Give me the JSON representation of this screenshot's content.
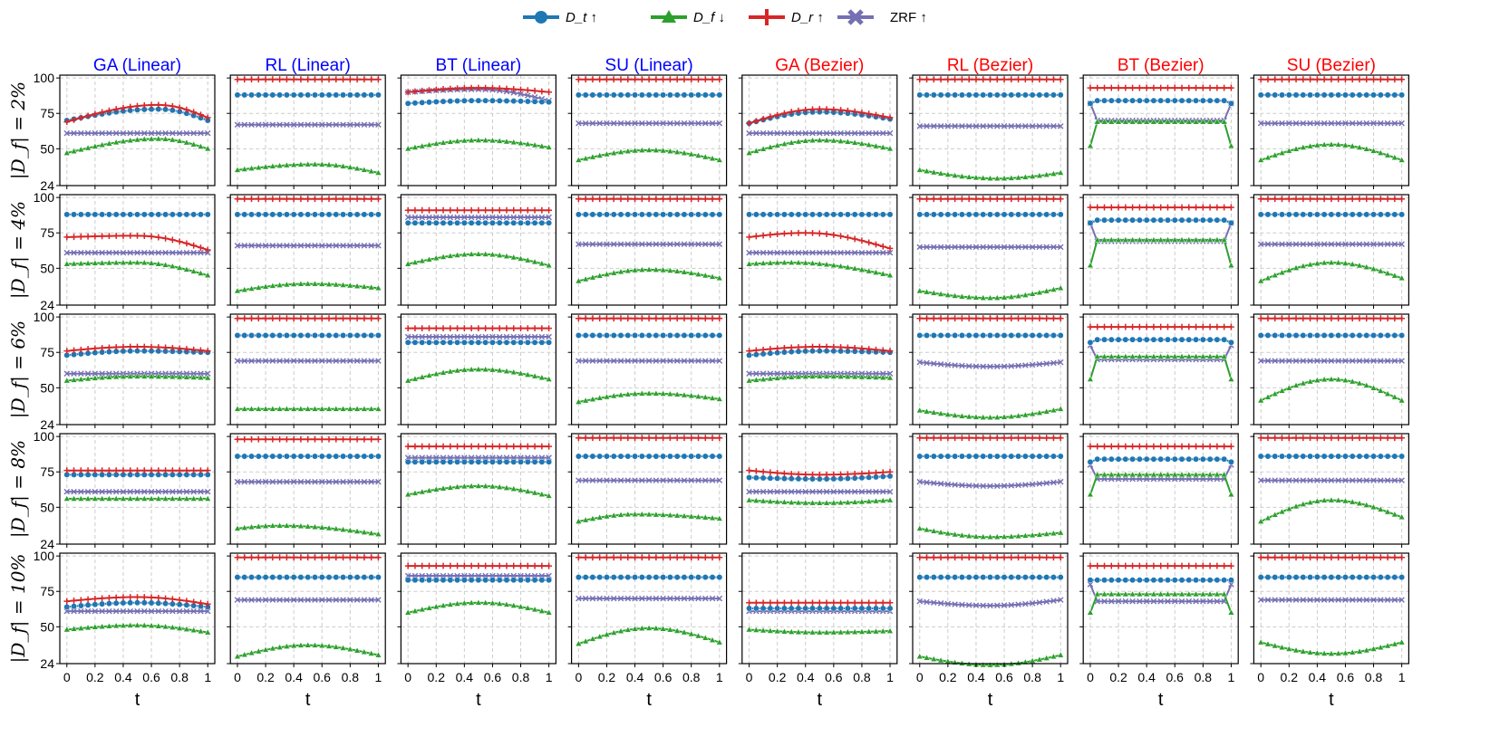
{
  "chart_data": {
    "type": "line",
    "columns": [
      "GA (Linear)",
      "RL (Linear)",
      "BT (Linear)",
      "SU (Linear)",
      "GA (Bezier)",
      "RL (Bezier)",
      "BT (Bezier)",
      "SU (Bezier)"
    ],
    "column_colors": [
      "#0000ff",
      "#0000ff",
      "#0000ff",
      "#0000ff",
      "#ff0000",
      "#ff0000",
      "#ff0000",
      "#ff0000"
    ],
    "rows": [
      "|D_f| = 2%",
      "|D_f| = 4%",
      "|D_f| = 6%",
      "|D_f| = 8%",
      "|D_f| = 10%"
    ],
    "xlabel": "t",
    "x_ticks": [
      "0",
      "0.2",
      "0.4",
      "0.6",
      "0.8",
      "1"
    ],
    "y_ticks": [
      "24",
      "50",
      "75",
      "100"
    ],
    "ylim": [
      24,
      102
    ],
    "xlim": [
      -0.05,
      1.05
    ],
    "grid": true,
    "legend_position": "top-center",
    "legend": [
      {
        "key": "Dt",
        "label": "D_t ↑",
        "color": "#1f77b4",
        "marker": "circle"
      },
      {
        "key": "Df",
        "label": "D_f ↓",
        "color": "#2ca02c",
        "marker": "triangle"
      },
      {
        "key": "Dr",
        "label": "D_r ↑",
        "color": "#d62728",
        "marker": "plus"
      },
      {
        "key": "ZRF",
        "label": "ZRF  ↑",
        "color": "#7570b3",
        "marker": "x"
      }
    ],
    "curves": {
      "Dt": [
        [
          [
            "hump",
            70,
            78,
            0.65,
            70
          ],
          [
            "flat",
            88
          ],
          [
            "hump",
            82,
            84,
            0.5,
            83
          ],
          [
            "flat",
            88
          ],
          [
            "hump",
            68,
            76,
            0.5,
            71
          ],
          [
            "flat",
            88
          ],
          [
            "bt",
            84,
            82
          ],
          [
            "flat",
            88
          ]
        ],
        [
          [
            "flat",
            88
          ],
          [
            "flat",
            88
          ],
          [
            "flat",
            82
          ],
          [
            "flat",
            88
          ],
          [
            "flat",
            88
          ],
          [
            "flat",
            88
          ],
          [
            "bt",
            84,
            82
          ],
          [
            "flat",
            88
          ]
        ],
        [
          [
            "hump",
            73,
            76,
            0.5,
            75
          ],
          [
            "flat",
            87
          ],
          [
            "flat",
            82
          ],
          [
            "flat",
            87
          ],
          [
            "hump",
            73,
            76,
            0.5,
            75
          ],
          [
            "flat",
            87
          ],
          [
            "bt",
            84,
            82
          ],
          [
            "flat",
            87
          ]
        ],
        [
          [
            "flat",
            73
          ],
          [
            "flat",
            86
          ],
          [
            "flat",
            82
          ],
          [
            "flat",
            86
          ],
          [
            "hump",
            71,
            70,
            0.5,
            72
          ],
          [
            "flat",
            86
          ],
          [
            "bt",
            84,
            82
          ],
          [
            "flat",
            86
          ]
        ],
        [
          [
            "hump",
            64,
            67,
            0.5,
            64
          ],
          [
            "flat",
            85
          ],
          [
            "flat",
            83
          ],
          [
            "flat",
            85
          ],
          [
            "flat",
            63
          ],
          [
            "flat",
            85
          ],
          [
            "bt",
            83,
            83
          ],
          [
            "flat",
            85
          ]
        ]
      ],
      "Df": [
        [
          [
            "hump",
            47,
            57,
            0.65,
            50
          ],
          [
            "hump",
            35,
            39,
            0.55,
            33
          ],
          [
            "hump",
            50,
            56,
            0.5,
            51
          ],
          [
            "hump",
            42,
            49,
            0.5,
            42
          ],
          [
            "hump",
            47,
            56,
            0.5,
            50
          ],
          [
            "hump",
            35,
            29,
            0.55,
            33
          ],
          [
            "bt",
            69,
            52
          ],
          [
            "hump",
            42,
            53,
            0.5,
            42
          ]
        ],
        [
          [
            "hump",
            53,
            54,
            0.5,
            45
          ],
          [
            "hump",
            34,
            39,
            0.5,
            36
          ],
          [
            "hump",
            53,
            60,
            0.5,
            52
          ],
          [
            "hump",
            41,
            49,
            0.5,
            43
          ],
          [
            "hump",
            53,
            54,
            0.3,
            45
          ],
          [
            "hump",
            34,
            29,
            0.5,
            36
          ],
          [
            "bt",
            70,
            52
          ],
          [
            "hump",
            41,
            54,
            0.5,
            43
          ]
        ],
        [
          [
            "hump",
            55,
            58,
            0.5,
            57
          ],
          [
            "flat",
            35
          ],
          [
            "hump",
            55,
            63,
            0.5,
            56
          ],
          [
            "hump",
            40,
            46,
            0.5,
            42
          ],
          [
            "hump",
            55,
            58,
            0.5,
            57
          ],
          [
            "hump",
            34,
            29,
            0.5,
            35
          ],
          [
            "bt",
            72,
            56
          ],
          [
            "hump",
            41,
            56,
            0.5,
            41
          ]
        ],
        [
          [
            "flat",
            56
          ],
          [
            "hump",
            35,
            37,
            0.3,
            31
          ],
          [
            "hump",
            59,
            65,
            0.5,
            58
          ],
          [
            "hump",
            40,
            45,
            0.4,
            42
          ],
          [
            "hump",
            55,
            53,
            0.5,
            55
          ],
          [
            "hump",
            35,
            29,
            0.5,
            32
          ],
          [
            "bt",
            73,
            59
          ],
          [
            "hump",
            40,
            55,
            0.5,
            43
          ]
        ],
        [
          [
            "hump",
            48,
            51,
            0.5,
            46
          ],
          [
            "hump",
            29,
            37,
            0.5,
            30
          ],
          [
            "hump",
            60,
            67,
            0.5,
            60
          ],
          [
            "hump",
            38,
            49,
            0.5,
            39
          ],
          [
            "hump",
            48,
            46,
            0.5,
            47
          ],
          [
            "hump",
            29,
            23,
            0.5,
            30
          ],
          [
            "bt",
            73,
            60
          ],
          [
            "hump",
            39,
            31,
            0.5,
            39
          ]
        ]
      ],
      "Dr": [
        [
          [
            "hump",
            69,
            81,
            0.65,
            72
          ],
          [
            "flat",
            99
          ],
          [
            "hump",
            90,
            93,
            0.5,
            90
          ],
          [
            "flat",
            99
          ],
          [
            "hump",
            68,
            78,
            0.5,
            72
          ],
          [
            "flat",
            99
          ],
          [
            "bt",
            93,
            93
          ],
          [
            "flat",
            99
          ]
        ],
        [
          [
            "hump",
            72,
            73,
            0.5,
            63
          ],
          [
            "flat",
            99
          ],
          [
            "flat",
            91
          ],
          [
            "flat",
            99
          ],
          [
            "hump",
            72,
            75,
            0.4,
            64
          ],
          [
            "flat",
            99
          ],
          [
            "bt",
            93,
            93
          ],
          [
            "flat",
            99
          ]
        ],
        [
          [
            "hump",
            76,
            79,
            0.5,
            76
          ],
          [
            "flat",
            99
          ],
          [
            "flat",
            92
          ],
          [
            "flat",
            99
          ],
          [
            "hump",
            76,
            79,
            0.5,
            76
          ],
          [
            "flat",
            99
          ],
          [
            "bt",
            93,
            93
          ],
          [
            "flat",
            99
          ]
        ],
        [
          [
            "flat",
            76
          ],
          [
            "flat",
            98
          ],
          [
            "flat",
            93
          ],
          [
            "flat",
            99
          ],
          [
            "hump",
            76,
            73,
            0.5,
            75
          ],
          [
            "flat",
            99
          ],
          [
            "bt",
            93,
            93
          ],
          [
            "flat",
            99
          ]
        ],
        [
          [
            "hump",
            68,
            71,
            0.5,
            66
          ],
          [
            "flat",
            99
          ],
          [
            "flat",
            93
          ],
          [
            "flat",
            99
          ],
          [
            "flat",
            67
          ],
          [
            "flat",
            99
          ],
          [
            "bt",
            93,
            93
          ],
          [
            "flat",
            99
          ]
        ]
      ],
      "ZRF": [
        [
          [
            "flat",
            61
          ],
          [
            "flat",
            67
          ],
          [
            "hump",
            90,
            92,
            0.5,
            84
          ],
          [
            "flat",
            68
          ],
          [
            "flat",
            61
          ],
          [
            "flat",
            66
          ],
          [
            "bt",
            70,
            82
          ],
          [
            "flat",
            68
          ]
        ],
        [
          [
            "flat",
            61
          ],
          [
            "flat",
            66
          ],
          [
            "flat",
            86
          ],
          [
            "flat",
            67
          ],
          [
            "flat",
            61
          ],
          [
            "flat",
            65
          ],
          [
            "bt",
            69,
            82
          ],
          [
            "flat",
            67
          ]
        ],
        [
          [
            "flat",
            60
          ],
          [
            "flat",
            69
          ],
          [
            "flat",
            86
          ],
          [
            "flat",
            69
          ],
          [
            "flat",
            60
          ],
          [
            "hump",
            68,
            65,
            0.5,
            68
          ],
          [
            "bt",
            70,
            80
          ],
          [
            "flat",
            69
          ]
        ],
        [
          [
            "flat",
            61
          ],
          [
            "flat",
            68
          ],
          [
            "flat",
            85
          ],
          [
            "flat",
            69
          ],
          [
            "flat",
            61
          ],
          [
            "hump",
            68,
            65,
            0.5,
            68
          ],
          [
            "bt",
            70,
            80
          ],
          [
            "flat",
            69
          ]
        ],
        [
          [
            "flat",
            61
          ],
          [
            "flat",
            69
          ],
          [
            "flat",
            86
          ],
          [
            "flat",
            70
          ],
          [
            "flat",
            61
          ],
          [
            "hump",
            68,
            65,
            0.5,
            69
          ],
          [
            "bt",
            68,
            80
          ],
          [
            "flat",
            69
          ]
        ]
      ]
    }
  }
}
